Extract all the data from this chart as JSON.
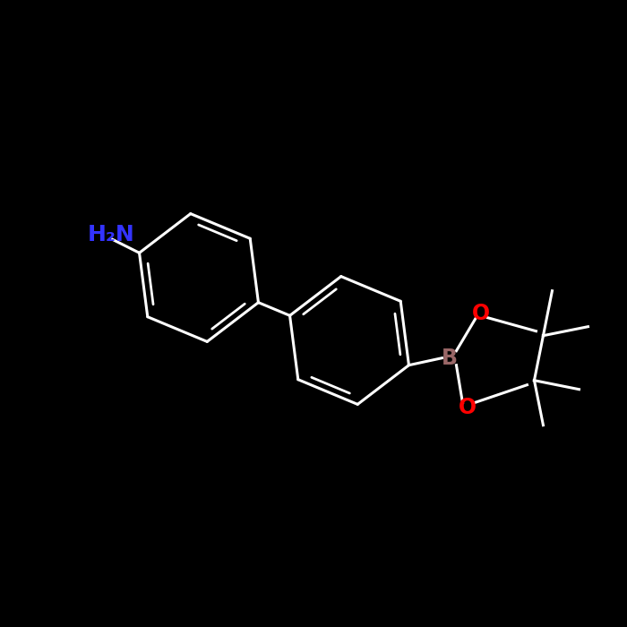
{
  "bg_color": "#000000",
  "bond_color": "#ffffff",
  "nh2_color": "#3333ff",
  "b_color": "#996666",
  "o_color": "#ff0000",
  "line_width": 2.2,
  "nh2_label": "H₂N",
  "b_label": "B",
  "o_label": "O",
  "figsize": [
    7.0,
    7.0
  ],
  "dpi": 100
}
